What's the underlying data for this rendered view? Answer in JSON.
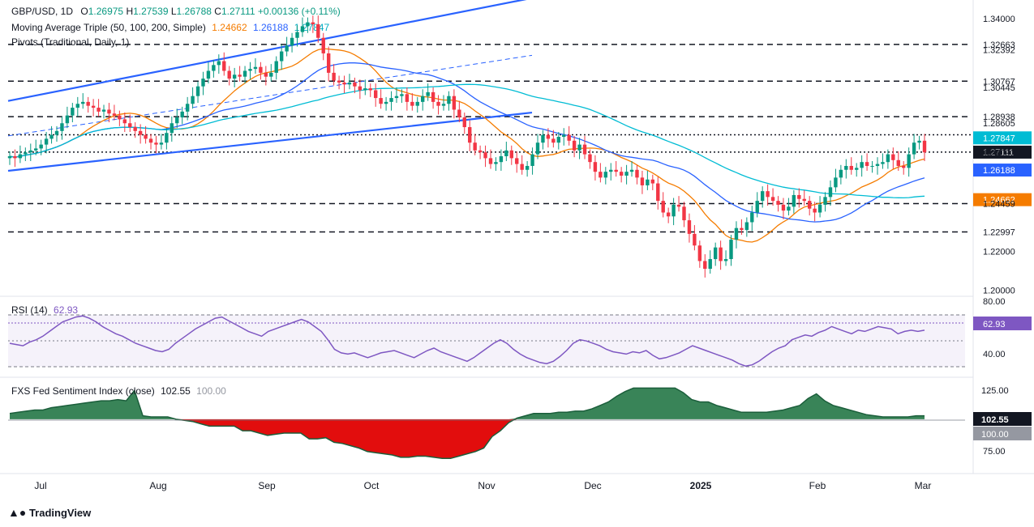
{
  "header": {
    "symbol": "GBP/USD, 1D",
    "o_label": "O",
    "o": "1.26975",
    "h_label": "H",
    "h": "1.27539",
    "l_label": "L",
    "l": "1.26788",
    "c_label": "C",
    "c": "1.27111",
    "change": "+0.00136 (+0.11%)",
    "ma_label": "Moving Average Triple (50, 100, 200, Simple)",
    "ma50": "1.24662",
    "ma100": "1.26188",
    "ma200": "1.27847",
    "pivots_label": "Pivots (Traditional, Daily, 1)"
  },
  "rsi": {
    "label": "RSI (14)",
    "value": "62.93",
    "ticks": [
      "80.00",
      "40.00"
    ],
    "badge": "62.93"
  },
  "fxs": {
    "label": "FXS Fed Sentiment Index (close)",
    "value": "102.55",
    "base": "100.00",
    "ticks": [
      "125.00",
      "75.00"
    ],
    "badge1": "102.55",
    "badge2": "100.00"
  },
  "x_axis": [
    "Jul",
    "Aug",
    "Sep",
    "Oct",
    "Nov",
    "Dec",
    "2025",
    "Feb",
    "Mar"
  ],
  "branding": "TradingView",
  "colors": {
    "up": "#089981",
    "down": "#f23645",
    "ma50": "#f57c00",
    "ma100": "#2962ff",
    "ma200": "#00bcd4",
    "channel": "#2962ff",
    "rsi": "#7e57c2",
    "fxs_pos": "#2e7d4f",
    "fxs_neg": "#e00000"
  },
  "chart_data": {
    "type": "candlestick",
    "title": "GBP/USD, 1D",
    "price_axis_labels": [
      "1.34000",
      "1.32663",
      "1.32392",
      "1.30767",
      "1.30445",
      "1.28938",
      "1.28605",
      "1.28007",
      "1.27847",
      "1.27111",
      "1.27093",
      "1.26188",
      "1.24662",
      "1.24459",
      "1.22997",
      "1.22000",
      "1.20000"
    ],
    "ylim": [
      1.1985,
      1.3445
    ],
    "pivot_levels": [
      {
        "value": 1.32663,
        "style": "dashed"
      },
      {
        "value": 1.30767,
        "style": "dashed"
      },
      {
        "value": 1.28938,
        "style": "dashed"
      },
      {
        "value": 1.28007,
        "style": "dotted"
      },
      {
        "value": 1.27111,
        "style": "dotted"
      },
      {
        "value": 1.24459,
        "style": "dashed"
      },
      {
        "value": 1.22997,
        "style": "dashed"
      }
    ],
    "close_series": [
      1.269,
      1.268,
      1.27,
      1.271,
      1.272,
      1.273,
      1.275,
      1.278,
      1.28,
      1.282,
      1.286,
      1.29,
      1.294,
      1.296,
      1.297,
      1.295,
      1.294,
      1.292,
      1.293,
      1.291,
      1.29,
      1.288,
      1.286,
      1.284,
      1.282,
      1.28,
      1.278,
      1.276,
      1.275,
      1.276,
      1.281,
      1.286,
      1.289,
      1.292,
      1.296,
      1.3,
      1.305,
      1.309,
      1.313,
      1.316,
      1.318,
      1.313,
      1.309,
      1.311,
      1.31,
      1.313,
      1.314,
      1.315,
      1.312,
      1.31,
      1.312,
      1.318,
      1.323,
      1.326,
      1.33,
      1.333,
      1.336,
      1.338,
      1.337,
      1.33,
      1.322,
      1.312,
      1.308,
      1.307,
      1.306,
      1.307,
      1.305,
      1.303,
      1.304,
      1.303,
      1.299,
      1.296,
      1.297,
      1.299,
      1.3,
      1.301,
      1.297,
      1.295,
      1.297,
      1.3,
      1.302,
      1.297,
      1.295,
      1.296,
      1.3,
      1.293,
      1.289,
      1.284,
      1.276,
      1.272,
      1.271,
      1.268,
      1.265,
      1.266,
      1.269,
      1.272,
      1.268,
      1.265,
      1.262,
      1.264,
      1.27,
      1.276,
      1.28,
      1.278,
      1.276,
      1.279,
      1.28,
      1.277,
      1.272,
      1.275,
      1.27,
      1.266,
      1.261,
      1.258,
      1.261,
      1.262,
      1.261,
      1.259,
      1.261,
      1.262,
      1.258,
      1.254,
      1.257,
      1.255,
      1.246,
      1.24,
      1.238,
      1.244,
      1.243,
      1.236,
      1.229,
      1.223,
      1.215,
      1.211,
      1.216,
      1.222,
      1.215,
      1.216,
      1.226,
      1.232,
      1.231,
      1.235,
      1.24,
      1.246,
      1.251,
      1.248,
      1.246,
      1.244,
      1.241,
      1.243,
      1.249,
      1.247,
      1.246,
      1.242,
      1.24,
      1.244,
      1.248,
      1.253,
      1.258,
      1.262,
      1.264,
      1.262,
      1.263,
      1.266,
      1.264,
      1.264,
      1.265,
      1.266,
      1.27,
      1.267,
      1.264,
      1.263,
      1.27,
      1.276,
      1.277,
      1.271
    ],
    "moving_averages": [
      {
        "name": "MA 50",
        "last": 1.24662
      },
      {
        "name": "MA 100",
        "last": 1.26188
      },
      {
        "name": "MA 200",
        "last": 1.27847
      }
    ],
    "rsi_series": [
      52,
      51,
      50,
      53,
      55,
      58,
      62,
      66,
      70,
      72,
      74,
      75,
      73,
      70,
      66,
      63,
      60,
      58,
      55,
      52,
      50,
      48,
      46,
      45,
      47,
      52,
      56,
      60,
      64,
      67,
      70,
      73,
      74,
      71,
      68,
      65,
      62,
      60,
      58,
      62,
      64,
      66,
      68,
      70,
      72,
      70,
      66,
      62,
      55,
      47,
      44,
      43,
      44,
      42,
      40,
      42,
      44,
      45,
      46,
      44,
      42,
      40,
      43,
      46,
      48,
      45,
      43,
      41,
      39,
      37,
      40,
      44,
      48,
      52,
      55,
      52,
      47,
      43,
      40,
      38,
      36,
      35,
      37,
      41,
      46,
      52,
      55,
      54,
      52,
      50,
      47,
      45,
      44,
      43,
      45,
      44,
      46,
      42,
      39,
      40,
      42,
      44,
      47,
      50,
      48,
      46,
      44,
      42,
      40,
      38,
      35,
      33,
      34,
      37,
      41,
      45,
      48,
      50,
      55,
      57,
      59,
      58,
      61,
      63,
      66,
      64,
      62,
      60,
      63,
      62,
      64,
      66,
      65,
      64,
      60,
      62,
      63,
      62,
      63
    ],
    "rsi_ylim": [
      25,
      90
    ],
    "fxs_series": [
      105,
      106,
      107,
      108,
      108,
      110,
      111,
      112,
      113,
      114,
      115,
      116,
      116,
      117,
      116,
      125,
      103,
      102,
      102,
      102,
      100,
      99,
      98,
      96,
      94,
      94,
      94,
      94,
      90,
      90,
      88,
      86,
      87,
      88,
      88,
      88,
      83,
      83,
      84,
      80,
      79,
      77,
      75,
      72,
      71,
      70,
      69,
      67,
      67,
      68,
      68,
      67,
      66,
      66,
      68,
      70,
      72,
      75,
      85,
      90,
      97,
      101,
      103,
      105,
      105,
      105,
      106,
      106,
      107,
      107,
      109,
      112,
      115,
      120,
      124,
      127,
      127,
      127,
      127,
      127,
      127,
      123,
      117,
      115,
      115,
      112,
      110,
      108,
      106,
      106,
      106,
      106,
      107,
      108,
      110,
      112,
      118,
      122,
      116,
      112,
      110,
      108,
      106,
      104,
      103,
      102,
      102,
      102,
      102,
      103,
      103
    ],
    "fxs_ylim": [
      55,
      135
    ],
    "fxs_base": 100
  }
}
